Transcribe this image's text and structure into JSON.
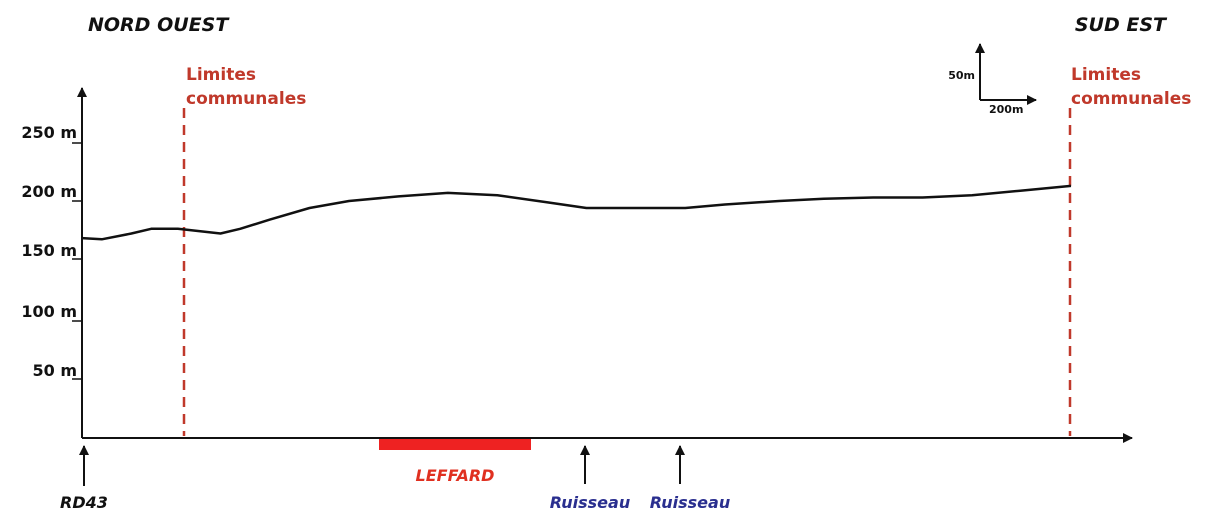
{
  "header": {
    "left_title": "NORD OUEST",
    "right_title": "SUD EST"
  },
  "scale": {
    "vertical_label": "50m",
    "horizontal_label": "200m"
  },
  "limits": {
    "left": [
      "Limites",
      "communales"
    ],
    "right": [
      "Limites",
      "communales"
    ]
  },
  "markers": {
    "rd43": "RD43",
    "leffard": "LEFFARD",
    "ruisseau_1": "Ruisseau",
    "ruisseau_2": "Ruisseau"
  },
  "colors": {
    "limit": "#c0392b",
    "leffard_bar": "#ee2222",
    "leffard_text": "#e03020",
    "ruisseau_text": "#2a2f8f",
    "profile": "#111111"
  },
  "chart_data": {
    "type": "line",
    "title": "",
    "xlabel": "",
    "ylabel": "",
    "y_ticks": [
      "250 m",
      "200 m",
      "150 m",
      "100 m",
      "50 m"
    ],
    "y_tick_values": [
      250,
      200,
      150,
      100,
      50
    ],
    "ylim": [
      0,
      250
    ],
    "grid": false,
    "series": [
      {
        "x": [
          0,
          20,
          50,
          70,
          97,
          140,
          160,
          190,
          230,
          270,
          320,
          370,
          420,
          470,
          510,
          525,
          565,
          610,
          650,
          705,
          750,
          800,
          850,
          900,
          950,
          1000
        ],
        "values": [
          168,
          167,
          172,
          176,
          176,
          172,
          176,
          184,
          194,
          200,
          204,
          207,
          205,
          199,
          194,
          194,
          194,
          194,
          197,
          200,
          202,
          203,
          203,
          205,
          209,
          213
        ]
      }
    ]
  }
}
